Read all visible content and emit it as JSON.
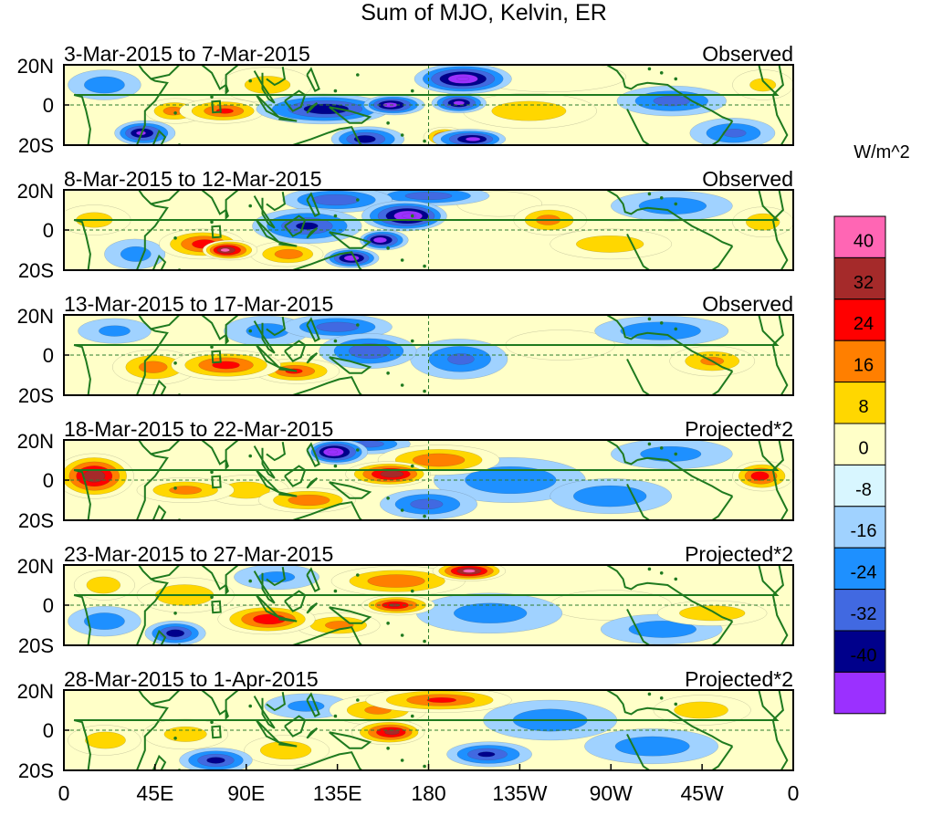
{
  "chart_data": {
    "type": "heatmap",
    "title": "Sum of MJO, Kelvin, ER",
    "colorbar": {
      "units": "W/m^2",
      "ticks": [
        "40",
        "32",
        "24",
        "16",
        "8",
        "0",
        "-8",
        "-16",
        "-24",
        "-32",
        "-40"
      ],
      "colors": [
        "#ff66b4",
        "#a52a2a",
        "#ff0000",
        "#ff7f00",
        "#ffd700",
        "#ffffc8",
        "#d8f6ff",
        "#a0d2ff",
        "#1e90ff",
        "#4169e1",
        "#00008b",
        "#9b30ff"
      ]
    },
    "x_ticks": [
      "0",
      "45E",
      "90E",
      "135E",
      "180",
      "135W",
      "90W",
      "45W",
      "0"
    ],
    "y_ticks": [
      "20N",
      "0",
      "20S"
    ],
    "panels": [
      {
        "period": "3-Mar-2015 to 7-Mar-2015",
        "type_label": "Observed",
        "blobs": [
          {
            "lon": 197,
            "lat": 13,
            "value": -42,
            "wlon": 16,
            "wlat": 6
          },
          {
            "lon": 163,
            "lat": 0,
            "value": -38,
            "wlon": 10,
            "wlat": 4
          },
          {
            "lon": 195,
            "lat": 1,
            "value": -36,
            "wlon": 9,
            "wlat": 4
          },
          {
            "lon": 128,
            "lat": -2,
            "value": -32,
            "wlon": 22,
            "wlat": 6
          },
          {
            "lon": 200,
            "lat": -17,
            "value": -36,
            "wlon": 12,
            "wlat": 4
          },
          {
            "lon": 150,
            "lat": -17,
            "value": -30,
            "wlon": 12,
            "wlat": 5
          },
          {
            "lon": 40,
            "lat": -14,
            "value": -34,
            "wlon": 10,
            "wlat": 5
          },
          {
            "lon": 188,
            "lat": -16,
            "value": 30,
            "wlon": 7,
            "wlat": 4
          },
          {
            "lon": 78,
            "lat": -3,
            "value": 26,
            "wlon": 14,
            "wlat": 5
          },
          {
            "lon": 55,
            "lat": -3,
            "value": 20,
            "wlon": 10,
            "wlat": 5
          },
          {
            "lon": 230,
            "lat": -3,
            "value": 14,
            "wlon": 22,
            "wlat": 7
          },
          {
            "lon": 100,
            "lat": 10,
            "value": 12,
            "wlon": 15,
            "wlat": 7
          },
          {
            "lon": 240,
            "lat": 14,
            "value": 8,
            "wlon": 25,
            "wlat": 6
          },
          {
            "lon": 300,
            "lat": 2,
            "value": -20,
            "wlon": 18,
            "wlat": 6
          },
          {
            "lon": 330,
            "lat": -14,
            "value": -18,
            "wlon": 14,
            "wlat": 6
          },
          {
            "lon": 20,
            "lat": 10,
            "value": -14,
            "wlon": 12,
            "wlat": 6
          },
          {
            "lon": 345,
            "lat": 10,
            "value": 10,
            "wlon": 10,
            "wlat": 6
          }
        ]
      },
      {
        "period": "8-Mar-2015 to 12-Mar-2015",
        "type_label": "Observed",
        "blobs": [
          {
            "lon": 168,
            "lat": 7,
            "value": -44,
            "wlon": 14,
            "wlat": 6
          },
          {
            "lon": 158,
            "lat": -5,
            "value": -40,
            "wlon": 8,
            "wlat": 4
          },
          {
            "lon": 142,
            "lat": -14,
            "value": -40,
            "wlon": 9,
            "wlat": 4
          },
          {
            "lon": 120,
            "lat": 2,
            "value": -26,
            "wlon": 18,
            "wlat": 7
          },
          {
            "lon": 135,
            "lat": 15,
            "value": -24,
            "wlon": 18,
            "wlat": 5
          },
          {
            "lon": 180,
            "lat": 17,
            "value": -22,
            "wlon": 20,
            "wlat": 4
          },
          {
            "lon": 82,
            "lat": -10,
            "value": 44,
            "wlon": 9,
            "wlat": 4
          },
          {
            "lon": 68,
            "lat": -7,
            "value": 30,
            "wlon": 14,
            "wlat": 6
          },
          {
            "lon": 110,
            "lat": -12,
            "value": 22,
            "wlon": 12,
            "wlat": 5
          },
          {
            "lon": 240,
            "lat": 5,
            "value": 20,
            "wlon": 12,
            "wlat": 6
          },
          {
            "lon": 270,
            "lat": -7,
            "value": 14,
            "wlon": 20,
            "wlat": 6
          },
          {
            "lon": 345,
            "lat": 4,
            "value": 14,
            "wlon": 10,
            "wlat": 6
          },
          {
            "lon": 215,
            "lat": 13,
            "value": 8,
            "wlon": 14,
            "wlat": 5
          },
          {
            "lon": 15,
            "lat": 5,
            "value": 12,
            "wlon": 12,
            "wlat": 6
          },
          {
            "lon": 300,
            "lat": 12,
            "value": -14,
            "wlon": 20,
            "wlat": 6
          },
          {
            "lon": 35,
            "lat": -12,
            "value": -12,
            "wlon": 10,
            "wlat": 6
          }
        ]
      },
      {
        "period": "13-Mar-2015 to 17-Mar-2015",
        "type_label": "Observed",
        "blobs": [
          {
            "lon": 80,
            "lat": -5,
            "value": 28,
            "wlon": 18,
            "wlat": 6
          },
          {
            "lon": 115,
            "lat": -8,
            "value": 26,
            "wlon": 14,
            "wlat": 5
          },
          {
            "lon": 45,
            "lat": -6,
            "value": 20,
            "wlon": 14,
            "wlat": 7
          },
          {
            "lon": 320,
            "lat": -3,
            "value": 18,
            "wlon": 14,
            "wlat": 6
          },
          {
            "lon": 245,
            "lat": 5,
            "value": 8,
            "wlon": 18,
            "wlat": 6
          },
          {
            "lon": 150,
            "lat": 2,
            "value": -24,
            "wlon": 16,
            "wlat": 7
          },
          {
            "lon": 135,
            "lat": 14,
            "value": -22,
            "wlon": 18,
            "wlat": 5
          },
          {
            "lon": 195,
            "lat": -2,
            "value": -18,
            "wlon": 16,
            "wlat": 8
          },
          {
            "lon": 295,
            "lat": 12,
            "value": -16,
            "wlon": 22,
            "wlat": 6
          },
          {
            "lon": 100,
            "lat": 12,
            "value": -12,
            "wlon": 14,
            "wlat": 6
          },
          {
            "lon": 25,
            "lat": 12,
            "value": -10,
            "wlon": 12,
            "wlat": 5
          }
        ]
      },
      {
        "period": "18-Mar-2015 to 22-Mar-2015",
        "type_label": "Projected*2",
        "blobs": [
          {
            "lon": 15,
            "lat": 2,
            "value": 40,
            "wlon": 13,
            "wlat": 9
          },
          {
            "lon": 160,
            "lat": 3,
            "value": 40,
            "wlon": 14,
            "wlat": 5
          },
          {
            "lon": 185,
            "lat": 10,
            "value": 24,
            "wlon": 20,
            "wlat": 6
          },
          {
            "lon": 345,
            "lat": 2,
            "value": 30,
            "wlon": 10,
            "wlat": 6
          },
          {
            "lon": 120,
            "lat": -10,
            "value": 24,
            "wlon": 16,
            "wlat": 5
          },
          {
            "lon": 60,
            "lat": -5,
            "value": 20,
            "wlon": 16,
            "wlat": 5
          },
          {
            "lon": 90,
            "lat": -5,
            "value": 14,
            "wlon": 14,
            "wlat": 6
          },
          {
            "lon": 135,
            "lat": 14,
            "value": -44,
            "wlon": 10,
            "wlat": 5
          },
          {
            "lon": 150,
            "lat": 18,
            "value": -20,
            "wlon": 14,
            "wlat": 4
          },
          {
            "lon": 180,
            "lat": -12,
            "value": -20,
            "wlon": 16,
            "wlat": 6
          },
          {
            "lon": 220,
            "lat": 0,
            "value": -16,
            "wlon": 25,
            "wlat": 9
          },
          {
            "lon": 270,
            "lat": -8,
            "value": -16,
            "wlon": 20,
            "wlat": 7
          },
          {
            "lon": 300,
            "lat": 13,
            "value": -12,
            "wlon": 20,
            "wlat": 6
          }
        ]
      },
      {
        "period": "23-Mar-2015 to 27-Mar-2015",
        "type_label": "Projected*2",
        "blobs": [
          {
            "lon": 200,
            "lat": 17,
            "value": 44,
            "wlon": 12,
            "wlat": 4
          },
          {
            "lon": 165,
            "lat": 12,
            "value": 24,
            "wlon": 22,
            "wlat": 6
          },
          {
            "lon": 165,
            "lat": 0,
            "value": 34,
            "wlon": 12,
            "wlat": 4
          },
          {
            "lon": 100,
            "lat": -7,
            "value": 32,
            "wlon": 16,
            "wlat": 6
          },
          {
            "lon": 135,
            "lat": -10,
            "value": 20,
            "wlon": 14,
            "wlat": 5
          },
          {
            "lon": 60,
            "lat": 5,
            "value": 16,
            "wlon": 16,
            "wlat": 7
          },
          {
            "lon": 20,
            "lat": 10,
            "value": 14,
            "wlon": 10,
            "wlat": 6
          },
          {
            "lon": 320,
            "lat": -4,
            "value": 16,
            "wlon": 18,
            "wlat": 5
          },
          {
            "lon": 270,
            "lat": 0,
            "value": 8,
            "wlon": 20,
            "wlat": 6
          },
          {
            "lon": 55,
            "lat": -14,
            "value": -30,
            "wlon": 10,
            "wlat": 5
          },
          {
            "lon": 20,
            "lat": -8,
            "value": -14,
            "wlon": 12,
            "wlat": 6
          },
          {
            "lon": 210,
            "lat": -4,
            "value": -12,
            "wlon": 24,
            "wlat": 8
          },
          {
            "lon": 295,
            "lat": -12,
            "value": -14,
            "wlon": 20,
            "wlat": 6
          },
          {
            "lon": 105,
            "lat": 14,
            "value": -10,
            "wlon": 14,
            "wlat": 5
          }
        ]
      },
      {
        "period": "28-Mar-2015 to 1-Apr-2015",
        "type_label": "Projected*2",
        "blobs": [
          {
            "lon": 160,
            "lat": -1,
            "value": 36,
            "wlon": 12,
            "wlat": 5
          },
          {
            "lon": 185,
            "lat": 15,
            "value": 26,
            "wlon": 24,
            "wlat": 5
          },
          {
            "lon": 155,
            "lat": 10,
            "value": 18,
            "wlon": 16,
            "wlat": 6
          },
          {
            "lon": 110,
            "lat": -10,
            "value": 16,
            "wlon": 14,
            "wlat": 6
          },
          {
            "lon": 20,
            "lat": -5,
            "value": 14,
            "wlon": 12,
            "wlat": 6
          },
          {
            "lon": 60,
            "lat": -2,
            "value": 12,
            "wlon": 14,
            "wlat": 6
          },
          {
            "lon": 315,
            "lat": 10,
            "value": 14,
            "wlon": 16,
            "wlat": 6
          },
          {
            "lon": 75,
            "lat": -15,
            "value": -28,
            "wlon": 12,
            "wlat": 5
          },
          {
            "lon": 210,
            "lat": -12,
            "value": -26,
            "wlon": 14,
            "wlat": 5
          },
          {
            "lon": 240,
            "lat": 5,
            "value": -14,
            "wlon": 22,
            "wlat": 8
          },
          {
            "lon": 290,
            "lat": -8,
            "value": -14,
            "wlon": 22,
            "wlat": 7
          },
          {
            "lon": 120,
            "lat": 12,
            "value": -10,
            "wlon": 14,
            "wlat": 5
          }
        ]
      }
    ]
  }
}
